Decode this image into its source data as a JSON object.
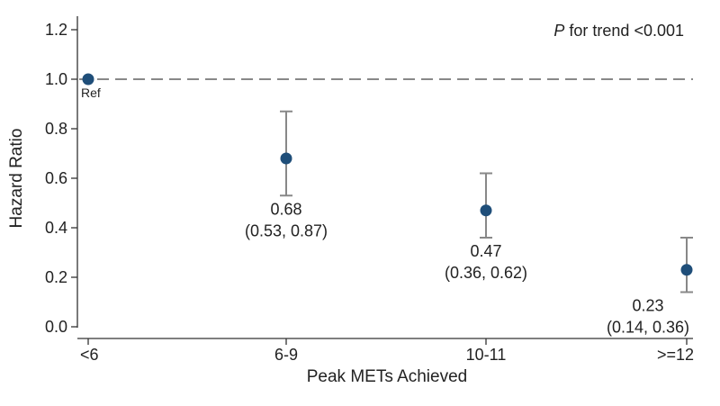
{
  "chart_data": {
    "type": "scatter",
    "xlabel": "Peak METs Achieved",
    "ylabel": "Hazard Ratio",
    "categories": [
      "<6",
      "6-9",
      "10-11",
      ">=12"
    ],
    "ylim": [
      0,
      1.2
    ],
    "yticks": [
      "0.0",
      "0.2",
      "0.4",
      "0.6",
      "0.8",
      "1.0",
      "1.2"
    ],
    "reference_line": 1.0,
    "annotation_prefix": "P",
    "annotation_rest": " for trend <0.001",
    "marker_color": "#1f4e79",
    "errorbar_color": "#888888",
    "points": [
      {
        "category": "<6",
        "hr": 1.0,
        "lower": null,
        "upper": null,
        "label": "Ref",
        "ci_label": ""
      },
      {
        "category": "6-9",
        "hr": 0.68,
        "lower": 0.53,
        "upper": 0.87,
        "label": "0.68",
        "ci_label": "(0.53, 0.87)"
      },
      {
        "category": "10-11",
        "hr": 0.47,
        "lower": 0.36,
        "upper": 0.62,
        "label": "0.47",
        "ci_label": "(0.36, 0.62)"
      },
      {
        "category": ">=12",
        "hr": 0.23,
        "lower": 0.14,
        "upper": 0.36,
        "label": "0.23",
        "ci_label": "(0.14, 0.36)"
      }
    ]
  }
}
